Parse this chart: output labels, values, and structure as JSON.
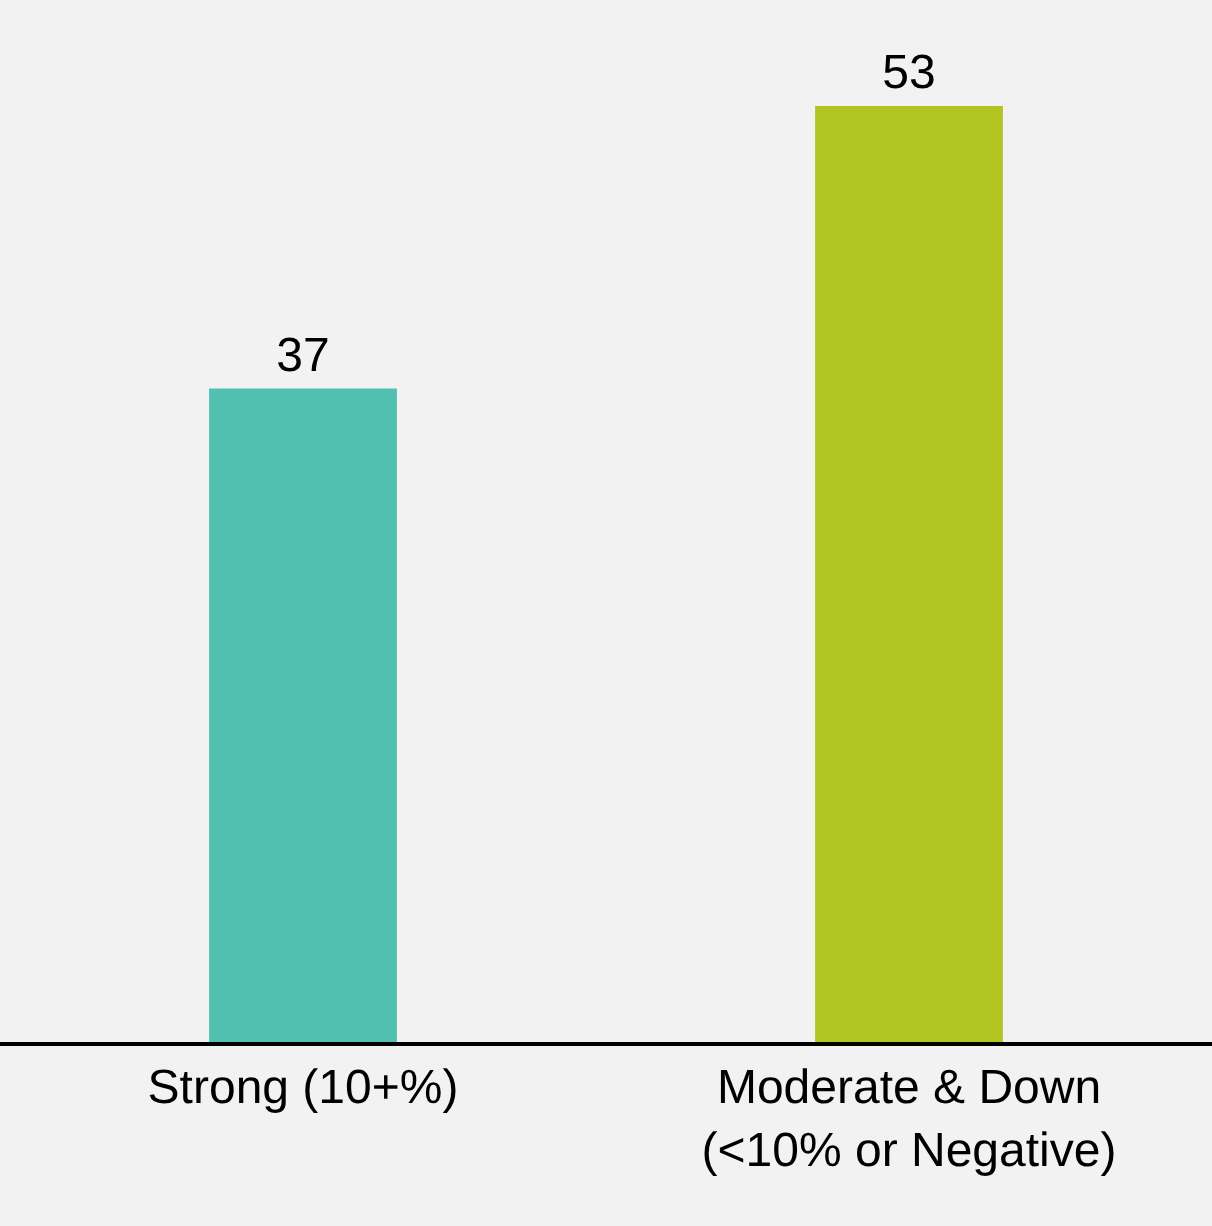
{
  "chart_data": {
    "type": "bar",
    "categories": [
      "Strong (10+%)",
      "Moderate & Down\n(<10% or Negative)"
    ],
    "values": [
      37,
      53
    ],
    "colors": [
      "#52c0b1",
      "#b3c523"
    ],
    "ylim": [
      0,
      59
    ],
    "data_labels": true,
    "grid": false,
    "tick_labels": "x"
  }
}
